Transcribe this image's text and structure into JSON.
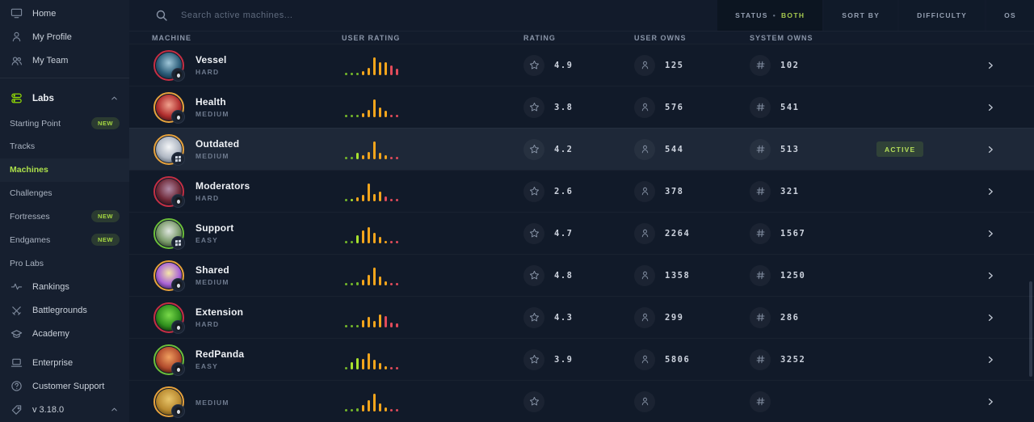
{
  "colors": {
    "accent": "#9fef00",
    "palette": {
      "green": "#74b72a",
      "lime": "#a8e22e",
      "orange": "#f3a51c",
      "red": "#e14b5a"
    },
    "difficulty_ring": {
      "HARD": "#c52f44",
      "MEDIUM": "#e7a23c",
      "EASY": "#6cbf3a"
    }
  },
  "sidebar": {
    "items": [
      {
        "label": "Home",
        "icon": "monitor-icon",
        "style": "top"
      },
      {
        "label": "My Profile",
        "icon": "user-icon",
        "style": "top"
      },
      {
        "label": "My Team",
        "icon": "team-icon",
        "style": "top",
        "divider_after": true
      },
      {
        "label": "Labs",
        "icon": "labs-icon",
        "style": "section",
        "chevron": "up"
      },
      {
        "label": "Starting Point",
        "style": "sub",
        "badge": "NEW"
      },
      {
        "label": "Tracks",
        "style": "sub"
      },
      {
        "label": "Machines",
        "style": "sub",
        "active": true
      },
      {
        "label": "Challenges",
        "style": "sub"
      },
      {
        "label": "Fortresses",
        "style": "sub",
        "badge": "NEW"
      },
      {
        "label": "Endgames",
        "style": "sub",
        "badge": "NEW"
      },
      {
        "label": "Pro Labs",
        "style": "sub"
      },
      {
        "label": "Rankings",
        "icon": "activity-icon",
        "style": "top"
      },
      {
        "label": "Battlegrounds",
        "icon": "swords-icon",
        "style": "top"
      },
      {
        "label": "Academy",
        "icon": "academy-icon",
        "style": "top"
      },
      {
        "label": "Enterprise",
        "icon": "laptop-icon",
        "style": "top",
        "gap_before": true
      },
      {
        "label": "Customer Support",
        "icon": "help-icon",
        "style": "top"
      },
      {
        "label": "v 3.18.0",
        "icon": "tag-icon",
        "style": "top",
        "chevron": "up"
      }
    ]
  },
  "topbar": {
    "search_placeholder": "Search active machines...",
    "filters": [
      {
        "label": "STATUS",
        "value": "BOTH",
        "primary": true
      },
      {
        "label": "SORT BY",
        "value": ""
      },
      {
        "label": "DIFFICULTY",
        "value": ""
      },
      {
        "label": "OS",
        "value": ""
      }
    ]
  },
  "table": {
    "columns": [
      "MACHINE",
      "USER RATING",
      "RATING",
      "USER OWNS",
      "SYSTEM OWNS"
    ],
    "rows": [
      {
        "name": "Vessel",
        "difficulty": "HARD",
        "os": "Linux",
        "rating": "4.9",
        "user_owns": "125",
        "system_owns": "102",
        "status": "",
        "avatar_colors": [
          "#9fc6d8",
          "#2d5e7a",
          "#0c2236"
        ],
        "histogram": {
          "heights": [
            2,
            2,
            3,
            5,
            9,
            22,
            16,
            16,
            12,
            8
          ],
          "colors": [
            "green",
            "green",
            "green",
            "orange",
            "orange",
            "orange",
            "orange",
            "orange",
            "red",
            "red"
          ]
        }
      },
      {
        "name": "Health",
        "difficulty": "MEDIUM",
        "os": "Linux",
        "rating": "3.8",
        "user_owns": "576",
        "system_owns": "541",
        "status": "",
        "avatar_colors": [
          "#f0a28e",
          "#b12e2e",
          "#38100f"
        ],
        "histogram": {
          "heights": [
            2,
            2,
            3,
            5,
            9,
            22,
            12,
            8,
            3,
            2
          ],
          "colors": [
            "green",
            "green",
            "green",
            "orange",
            "orange",
            "orange",
            "orange",
            "orange",
            "red",
            "red"
          ]
        }
      },
      {
        "name": "Outdated",
        "difficulty": "MEDIUM",
        "os": "Windows",
        "rating": "4.2",
        "user_owns": "544",
        "system_owns": "513",
        "status": "ACTIVE",
        "avatar_colors": [
          "#f4f6f8",
          "#aeb6c2",
          "#4c5663"
        ],
        "histogram": {
          "heights": [
            2,
            2,
            8,
            5,
            9,
            22,
            8,
            5,
            2,
            2
          ],
          "colors": [
            "green",
            "green",
            "lime",
            "orange",
            "orange",
            "orange",
            "orange",
            "orange",
            "red",
            "red"
          ]
        }
      },
      {
        "name": "Moderators",
        "difficulty": "HARD",
        "os": "Linux",
        "rating": "2.6",
        "user_owns": "378",
        "system_owns": "321",
        "status": "",
        "avatar_colors": [
          "#b08ba6",
          "#6e2837",
          "#1d0c15"
        ],
        "histogram": {
          "heights": [
            2,
            3,
            5,
            8,
            22,
            9,
            12,
            6,
            3,
            2
          ],
          "colors": [
            "green",
            "lime",
            "orange",
            "orange",
            "orange",
            "orange",
            "orange",
            "red",
            "red",
            "red"
          ]
        }
      },
      {
        "name": "Support",
        "difficulty": "EASY",
        "os": "Windows",
        "rating": "4.7",
        "user_owns": "2264",
        "system_owns": "1567",
        "status": "",
        "avatar_colors": [
          "#dfe6df",
          "#7a9a6a",
          "#253420"
        ],
        "histogram": {
          "heights": [
            2,
            3,
            10,
            16,
            20,
            13,
            8,
            3,
            2,
            2
          ],
          "colors": [
            "green",
            "green",
            "lime",
            "orange",
            "orange",
            "orange",
            "orange",
            "orange",
            "red",
            "red"
          ]
        }
      },
      {
        "name": "Shared",
        "difficulty": "MEDIUM",
        "os": "Linux",
        "rating": "4.8",
        "user_owns": "1358",
        "system_owns": "1250",
        "status": "",
        "avatar_colors": [
          "#f5e6a8",
          "#a963d6",
          "#2f1847"
        ],
        "histogram": {
          "heights": [
            2,
            2,
            4,
            7,
            13,
            22,
            11,
            5,
            2,
            2
          ],
          "colors": [
            "green",
            "green",
            "green",
            "orange",
            "orange",
            "orange",
            "orange",
            "orange",
            "red",
            "red"
          ]
        }
      },
      {
        "name": "Extension",
        "difficulty": "HARD",
        "os": "Linux",
        "rating": "4.3",
        "user_owns": "299",
        "system_owns": "286",
        "status": "",
        "avatar_colors": [
          "#79d94a",
          "#2f8f1d",
          "#0b1d08"
        ],
        "histogram": {
          "heights": [
            2,
            2,
            3,
            9,
            13,
            8,
            16,
            14,
            6,
            5
          ],
          "colors": [
            "green",
            "green",
            "green",
            "orange",
            "orange",
            "orange",
            "orange",
            "red",
            "red",
            "red"
          ]
        }
      },
      {
        "name": "RedPanda",
        "difficulty": "EASY",
        "os": "Linux",
        "rating": "3.9",
        "user_owns": "5806",
        "system_owns": "3252",
        "status": "",
        "avatar_colors": [
          "#f0a060",
          "#b04a2c",
          "#301008"
        ],
        "histogram": {
          "heights": [
            3,
            9,
            14,
            13,
            20,
            12,
            8,
            4,
            2,
            2
          ],
          "colors": [
            "green",
            "lime",
            "lime",
            "orange",
            "orange",
            "orange",
            "orange",
            "orange",
            "red",
            "red"
          ]
        }
      }
    ],
    "partial_row": {
      "name": "",
      "difficulty": "MEDIUM",
      "os": "Linux",
      "rating": "",
      "user_owns": "",
      "system_owns": "",
      "status": "",
      "avatar_colors": [
        "#e8c56a",
        "#b98a30",
        "#5a4410"
      ],
      "histogram": {
        "heights": [
          2,
          2,
          4,
          8,
          14,
          22,
          10,
          5,
          2,
          2
        ],
        "colors": [
          "green",
          "green",
          "green",
          "orange",
          "orange",
          "orange",
          "orange",
          "orange",
          "red",
          "red"
        ]
      }
    }
  }
}
